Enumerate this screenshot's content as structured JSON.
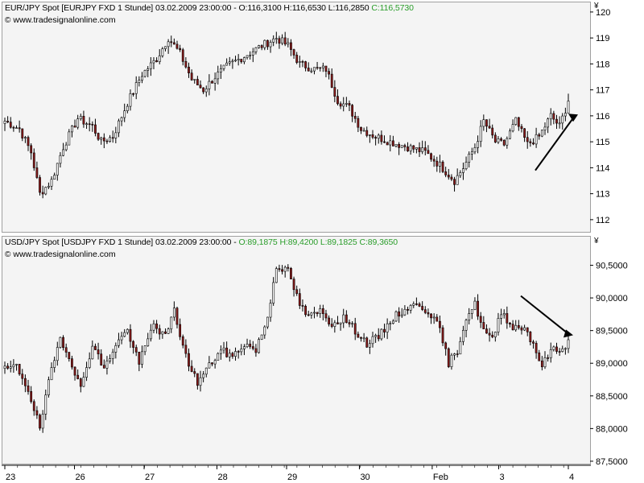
{
  "chart_data": [
    {
      "type": "candlestick",
      "header": {
        "instrument": "EUR/JPY Spot [EURJPY FXD  1 Stunde]",
        "datetime": "03.02.2009 23:00:00",
        "open_text": "O:116,3100",
        "high_text": "H:116,6530",
        "low_text": "L:116,2850",
        "close_text": "C:116,5730"
      },
      "source": "www.tradesignalonline.com",
      "currency": "¥",
      "y_ticks": [
        "112",
        "113",
        "114",
        "115",
        "116",
        "117",
        "118",
        "119",
        "120"
      ],
      "ylim": [
        111.5,
        120.4
      ],
      "annotation": "arrow-up",
      "key_points": [
        {
          "t": 0,
          "v": 115.8
        },
        {
          "t": 5,
          "v": 115.5
        },
        {
          "t": 9,
          "v": 114.6
        },
        {
          "t": 12,
          "v": 113.0
        },
        {
          "t": 16,
          "v": 113.5
        },
        {
          "t": 20,
          "v": 114.8
        },
        {
          "t": 25,
          "v": 115.9
        },
        {
          "t": 30,
          "v": 115.6
        },
        {
          "t": 33,
          "v": 115.0
        },
        {
          "t": 37,
          "v": 115.2
        },
        {
          "t": 42,
          "v": 116.5
        },
        {
          "t": 47,
          "v": 117.6
        },
        {
          "t": 52,
          "v": 118.2
        },
        {
          "t": 56,
          "v": 119.0
        },
        {
          "t": 60,
          "v": 118.4
        },
        {
          "t": 64,
          "v": 117.4
        },
        {
          "t": 68,
          "v": 117.0
        },
        {
          "t": 72,
          "v": 117.5
        },
        {
          "t": 76,
          "v": 117.9
        },
        {
          "t": 82,
          "v": 118.3
        },
        {
          "t": 88,
          "v": 118.7
        },
        {
          "t": 93,
          "v": 119.0
        },
        {
          "t": 97,
          "v": 118.7
        },
        {
          "t": 101,
          "v": 118.0
        },
        {
          "t": 106,
          "v": 117.8
        },
        {
          "t": 110,
          "v": 117.8
        },
        {
          "t": 114,
          "v": 116.6
        },
        {
          "t": 118,
          "v": 116.3
        },
        {
          "t": 122,
          "v": 115.5
        },
        {
          "t": 127,
          "v": 115.2
        },
        {
          "t": 132,
          "v": 115.0
        },
        {
          "t": 138,
          "v": 114.8
        },
        {
          "t": 144,
          "v": 114.6
        },
        {
          "t": 149,
          "v": 114.1
        },
        {
          "t": 154,
          "v": 113.5
        },
        {
          "t": 157,
          "v": 114.0
        },
        {
          "t": 161,
          "v": 114.8
        },
        {
          "t": 164,
          "v": 115.8
        },
        {
          "t": 168,
          "v": 115.0
        },
        {
          "t": 171,
          "v": 114.9
        },
        {
          "t": 175,
          "v": 115.8
        },
        {
          "t": 179,
          "v": 114.9
        },
        {
          "t": 183,
          "v": 115.2
        },
        {
          "t": 187,
          "v": 116.0
        },
        {
          "t": 190,
          "v": 115.6
        },
        {
          "t": 193,
          "v": 116.57
        }
      ]
    },
    {
      "type": "candlestick",
      "header": {
        "instrument": "USD/JPY Spot [USDJPY FXD  1 Stunde]",
        "datetime": "03.02.2009 23:00:00",
        "open_text": "O:89,1875",
        "high_text": "H:89,4200",
        "low_text": "L:89,1825",
        "close_text": "C:89,3650"
      },
      "source": "www.tradesignalonline.com",
      "currency": "¥",
      "y_ticks": [
        "87,5000",
        "88,0000",
        "88,5000",
        "89,0000",
        "89,5000",
        "90,0000",
        "90,5000"
      ],
      "ylim": [
        87.45,
        90.95
      ],
      "annotation": "arrow-down",
      "key_points": [
        {
          "t": 0,
          "v": 88.9
        },
        {
          "t": 4,
          "v": 88.95
        },
        {
          "t": 8,
          "v": 88.6
        },
        {
          "t": 12,
          "v": 88.0
        },
        {
          "t": 15,
          "v": 88.7
        },
        {
          "t": 19,
          "v": 89.4
        },
        {
          "t": 23,
          "v": 89.0
        },
        {
          "t": 26,
          "v": 88.6
        },
        {
          "t": 30,
          "v": 89.3
        },
        {
          "t": 34,
          "v": 88.9
        },
        {
          "t": 38,
          "v": 89.3
        },
        {
          "t": 42,
          "v": 89.5
        },
        {
          "t": 46,
          "v": 89.0
        },
        {
          "t": 51,
          "v": 89.6
        },
        {
          "t": 55,
          "v": 89.4
        },
        {
          "t": 58,
          "v": 89.8
        },
        {
          "t": 62,
          "v": 89.1
        },
        {
          "t": 66,
          "v": 88.7
        },
        {
          "t": 69,
          "v": 88.9
        },
        {
          "t": 74,
          "v": 89.2
        },
        {
          "t": 78,
          "v": 89.1
        },
        {
          "t": 82,
          "v": 89.3
        },
        {
          "t": 86,
          "v": 89.2
        },
        {
          "t": 90,
          "v": 89.7
        },
        {
          "t": 93,
          "v": 90.5
        },
        {
          "t": 97,
          "v": 90.4
        },
        {
          "t": 101,
          "v": 89.9
        },
        {
          "t": 104,
          "v": 89.7
        },
        {
          "t": 108,
          "v": 89.8
        },
        {
          "t": 112,
          "v": 89.6
        },
        {
          "t": 116,
          "v": 89.7
        },
        {
          "t": 120,
          "v": 89.5
        },
        {
          "t": 124,
          "v": 89.3
        },
        {
          "t": 128,
          "v": 89.4
        },
        {
          "t": 133,
          "v": 89.7
        },
        {
          "t": 138,
          "v": 89.85
        },
        {
          "t": 142,
          "v": 89.9
        },
        {
          "t": 146,
          "v": 89.75
        },
        {
          "t": 149,
          "v": 89.5
        },
        {
          "t": 152,
          "v": 89.0
        },
        {
          "t": 155,
          "v": 89.2
        },
        {
          "t": 158,
          "v": 89.7
        },
        {
          "t": 161,
          "v": 89.9
        },
        {
          "t": 164,
          "v": 89.5
        },
        {
          "t": 167,
          "v": 89.35
        },
        {
          "t": 170,
          "v": 89.8
        },
        {
          "t": 174,
          "v": 89.55
        },
        {
          "t": 178,
          "v": 89.55
        },
        {
          "t": 181,
          "v": 89.3
        },
        {
          "t": 184,
          "v": 88.95
        },
        {
          "t": 187,
          "v": 89.2
        },
        {
          "t": 191,
          "v": 89.2
        },
        {
          "t": 193,
          "v": 89.36
        }
      ]
    }
  ],
  "time_axis": {
    "ticks": [
      {
        "label": "23",
        "t": 0
      },
      {
        "label": "26",
        "t": 22
      },
      {
        "label": "27",
        "t": 44
      },
      {
        "label": "28",
        "t": 67
      },
      {
        "label": "29",
        "t": 89
      },
      {
        "label": "30",
        "t": 112
      },
      {
        "label": "Feb",
        "t": 135
      },
      {
        "label": "3",
        "t": 156
      },
      {
        "label": "4",
        "t": 178
      }
    ]
  },
  "colors": {
    "up": "#ffffff",
    "down": "#8b1a1a",
    "wick": "#000000",
    "pane_bg": "#f4f4f4",
    "close_text": "#2a9d2a"
  }
}
